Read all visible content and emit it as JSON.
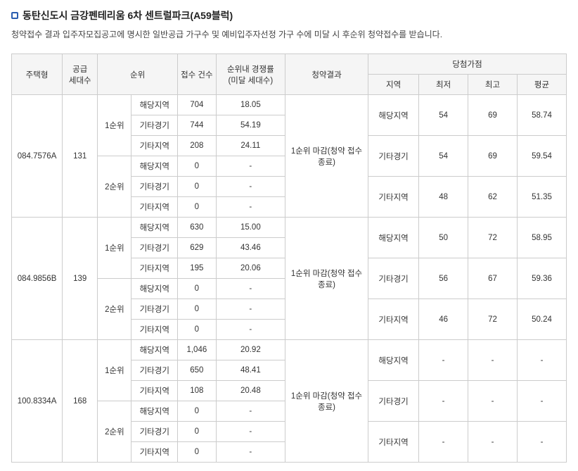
{
  "title": "동탄신도시 금강펜테리움 6차 센트럴파크(A59블럭)",
  "subtitle": "청약접수 결과 입주자모집공고에 명시한 일반공급 가구수 및 예비입주자선정 가구 수에 미달 시 후순위 청약접수를 받습니다.",
  "headers": {
    "houseType": "주택형",
    "supply": "공급 세대수",
    "rank": "순위",
    "apps": "접수 건수",
    "ratio": "순위내 경쟁률 (미달 세대수)",
    "result": "청약결과",
    "scoreGroup": "당첨가점",
    "region": "지역",
    "min": "최저",
    "max": "최고",
    "avg": "평균"
  },
  "rankLabels": {
    "r1": "1순위",
    "r2": "2순위"
  },
  "regionLabels": {
    "a": "해당지역",
    "b": "기타경기",
    "c": "기타지역"
  },
  "resultText": "1순위 마감(청약 접수 종료)",
  "groups": [
    {
      "type": "084.7576A",
      "supply": "131",
      "rows": [
        {
          "apps": "704",
          "ratio": "18.05"
        },
        {
          "apps": "744",
          "ratio": "54.19"
        },
        {
          "apps": "208",
          "ratio": "24.11"
        },
        {
          "apps": "0",
          "ratio": "-"
        },
        {
          "apps": "0",
          "ratio": "-"
        },
        {
          "apps": "0",
          "ratio": "-"
        }
      ],
      "scores": [
        {
          "min": "54",
          "max": "69",
          "avg": "58.74"
        },
        {
          "min": "54",
          "max": "69",
          "avg": "59.54"
        },
        {
          "min": "48",
          "max": "62",
          "avg": "51.35"
        }
      ]
    },
    {
      "type": "084.9856B",
      "supply": "139",
      "rows": [
        {
          "apps": "630",
          "ratio": "15.00"
        },
        {
          "apps": "629",
          "ratio": "43.46"
        },
        {
          "apps": "195",
          "ratio": "20.06"
        },
        {
          "apps": "0",
          "ratio": "-"
        },
        {
          "apps": "0",
          "ratio": "-"
        },
        {
          "apps": "0",
          "ratio": "-"
        }
      ],
      "scores": [
        {
          "min": "50",
          "max": "72",
          "avg": "58.95"
        },
        {
          "min": "56",
          "max": "67",
          "avg": "59.36"
        },
        {
          "min": "46",
          "max": "72",
          "avg": "50.24"
        }
      ]
    },
    {
      "type": "100.8334A",
      "supply": "168",
      "rows": [
        {
          "apps": "1,046",
          "ratio": "20.92"
        },
        {
          "apps": "650",
          "ratio": "48.41"
        },
        {
          "apps": "108",
          "ratio": "20.48"
        },
        {
          "apps": "0",
          "ratio": "-"
        },
        {
          "apps": "0",
          "ratio": "-"
        },
        {
          "apps": "0",
          "ratio": "-"
        }
      ],
      "scores": [
        {
          "min": "-",
          "max": "-",
          "avg": "-"
        },
        {
          "min": "-",
          "max": "-",
          "avg": "-"
        },
        {
          "min": "-",
          "max": "-",
          "avg": "-"
        }
      ]
    }
  ]
}
